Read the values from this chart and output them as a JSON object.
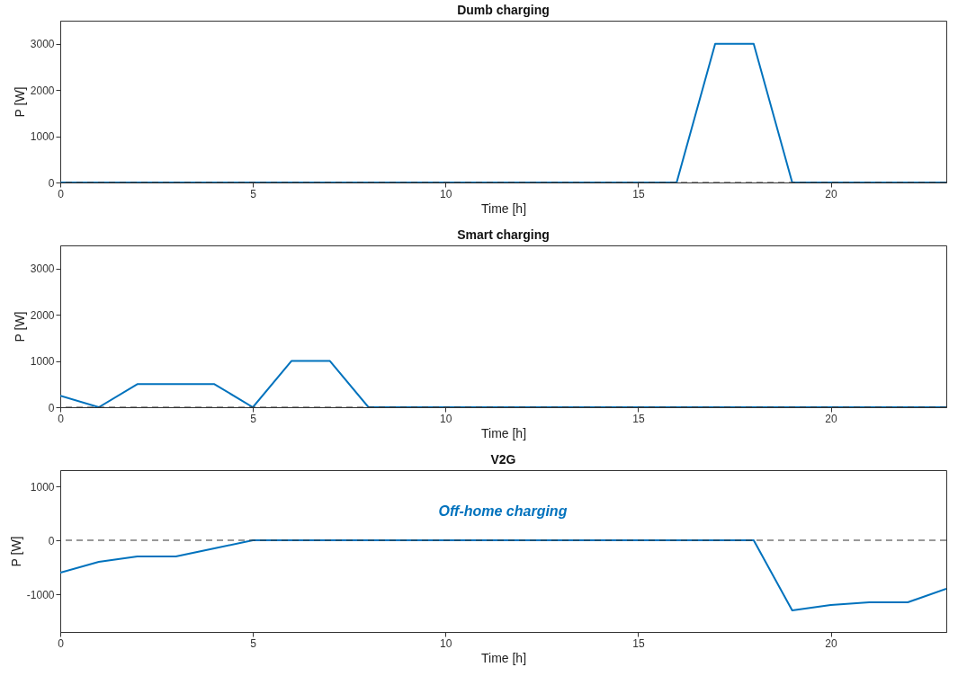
{
  "chart_data": [
    {
      "type": "line",
      "title": "Dumb charging",
      "xlabel": "Time [h]",
      "ylabel": "P [W]",
      "x": [
        0,
        1,
        2,
        3,
        4,
        5,
        6,
        7,
        8,
        9,
        10,
        11,
        12,
        13,
        14,
        15,
        16,
        17,
        18,
        19,
        20,
        21,
        22,
        23
      ],
      "xlim": [
        0,
        23
      ],
      "xticks": [
        0,
        5,
        10,
        15,
        20
      ],
      "ylim": [
        0,
        3500
      ],
      "yticks": [
        0,
        1000,
        2000,
        3000
      ],
      "series": [
        {
          "color": "#0072bd",
          "values": [
            0,
            0,
            0,
            0,
            0,
            0,
            0,
            0,
            0,
            0,
            0,
            0,
            0,
            0,
            0,
            0,
            0,
            3000,
            3000,
            0,
            0,
            0,
            0,
            0
          ]
        }
      ],
      "ref_lines": [
        {
          "axis": "y",
          "value": 0,
          "color": "#333333",
          "line_style": "dashed"
        }
      ],
      "grid": false
    },
    {
      "type": "line",
      "title": "Smart charging",
      "xlabel": "Time [h]",
      "ylabel": "P [W]",
      "x": [
        0,
        1,
        2,
        3,
        4,
        5,
        6,
        7,
        8,
        9,
        10,
        11,
        12,
        13,
        14,
        15,
        16,
        17,
        18,
        19,
        20,
        21,
        22,
        23
      ],
      "xlim": [
        0,
        23
      ],
      "xticks": [
        0,
        5,
        10,
        15,
        20
      ],
      "ylim": [
        0,
        3500
      ],
      "yticks": [
        0,
        1000,
        2000,
        3000
      ],
      "series": [
        {
          "color": "#0072bd",
          "values": [
            250,
            0,
            500,
            500,
            500,
            0,
            1000,
            1000,
            0,
            0,
            0,
            0,
            0,
            0,
            0,
            0,
            0,
            0,
            0,
            0,
            0,
            0,
            0,
            0
          ]
        }
      ],
      "ref_lines": [
        {
          "axis": "y",
          "value": 0,
          "color": "#333333",
          "line_style": "dashed"
        }
      ],
      "grid": false
    },
    {
      "type": "line",
      "title": "V2G",
      "xlabel": "Time [h]",
      "ylabel": "P [W]",
      "x": [
        0,
        1,
        2,
        3,
        4,
        5,
        6,
        7,
        8,
        9,
        10,
        11,
        12,
        13,
        14,
        15,
        16,
        17,
        18,
        19,
        20,
        21,
        22,
        23
      ],
      "xlim": [
        0,
        23
      ],
      "xticks": [
        0,
        5,
        10,
        15,
        20
      ],
      "ylim": [
        -1700,
        1300
      ],
      "yticks": [
        -1000,
        0,
        1000
      ],
      "series": [
        {
          "color": "#0072bd",
          "values": [
            -600,
            -400,
            -300,
            -300,
            -150,
            0,
            0,
            0,
            0,
            0,
            0,
            0,
            0,
            0,
            0,
            0,
            0,
            0,
            0,
            -1300,
            -1200,
            -1150,
            -1150,
            -900
          ]
        }
      ],
      "ref_lines": [
        {
          "axis": "y",
          "value": 0,
          "color": "#333333",
          "line_style": "dashed"
        }
      ],
      "annotations": [
        "Off-home charging"
      ],
      "grid": false
    }
  ]
}
